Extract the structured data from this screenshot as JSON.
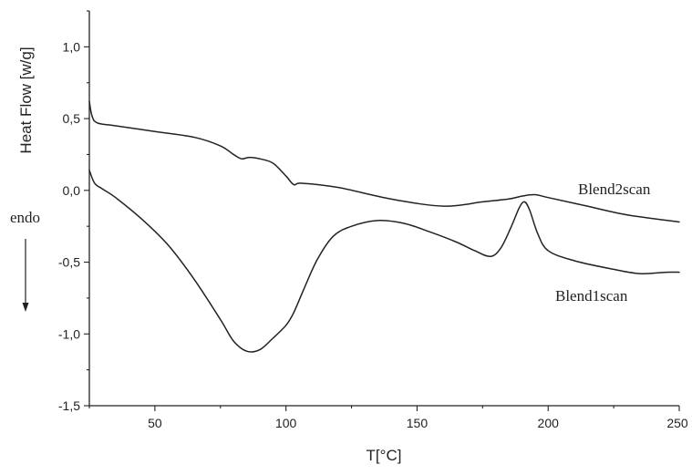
{
  "chart_data": {
    "type": "line",
    "xlabel": "T[°C]",
    "ylabel": "Heat Flow [w/g]",
    "xlim": [
      25,
      250
    ],
    "ylim": [
      -1.5,
      1.25
    ],
    "x_ticks": [
      50,
      100,
      150,
      200,
      250
    ],
    "x_tick_labels": [
      "50",
      "100",
      "150",
      "200",
      "250"
    ],
    "y_ticks": [
      -1.5,
      -1.0,
      -0.5,
      0.0,
      0.5,
      1.0
    ],
    "y_tick_labels": [
      "-1,5",
      "-1,0",
      "-0,5",
      "0,0",
      "0,5",
      "1,0"
    ],
    "grid": false,
    "annotations": {
      "endo_label": "endo"
    },
    "series": [
      {
        "name": "Blend2scan",
        "points": [
          [
            25,
            0.62
          ],
          [
            26,
            0.52
          ],
          [
            28,
            0.47
          ],
          [
            35,
            0.45
          ],
          [
            50,
            0.41
          ],
          [
            65,
            0.37
          ],
          [
            75,
            0.31
          ],
          [
            80,
            0.25
          ],
          [
            83,
            0.22
          ],
          [
            86,
            0.23
          ],
          [
            90,
            0.22
          ],
          [
            95,
            0.19
          ],
          [
            100,
            0.1
          ],
          [
            103,
            0.04
          ],
          [
            106,
            0.05
          ],
          [
            120,
            0.02
          ],
          [
            140,
            -0.06
          ],
          [
            160,
            -0.11
          ],
          [
            175,
            -0.08
          ],
          [
            185,
            -0.06
          ],
          [
            190,
            -0.04
          ],
          [
            195,
            -0.03
          ],
          [
            200,
            -0.05
          ],
          [
            215,
            -0.11
          ],
          [
            230,
            -0.17
          ],
          [
            250,
            -0.22
          ]
        ]
      },
      {
        "name": "Blend1scan",
        "points": [
          [
            25,
            0.14
          ],
          [
            27,
            0.05
          ],
          [
            30,
            0.01
          ],
          [
            35,
            -0.05
          ],
          [
            45,
            -0.2
          ],
          [
            55,
            -0.38
          ],
          [
            65,
            -0.62
          ],
          [
            75,
            -0.9
          ],
          [
            80,
            -1.05
          ],
          [
            85,
            -1.12
          ],
          [
            90,
            -1.11
          ],
          [
            95,
            -1.03
          ],
          [
            100,
            -0.94
          ],
          [
            103,
            -0.85
          ],
          [
            107,
            -0.68
          ],
          [
            112,
            -0.48
          ],
          [
            118,
            -0.32
          ],
          [
            125,
            -0.25
          ],
          [
            135,
            -0.21
          ],
          [
            145,
            -0.23
          ],
          [
            155,
            -0.29
          ],
          [
            165,
            -0.36
          ],
          [
            172,
            -0.42
          ],
          [
            178,
            -0.46
          ],
          [
            182,
            -0.4
          ],
          [
            186,
            -0.25
          ],
          [
            189,
            -0.12
          ],
          [
            191,
            -0.08
          ],
          [
            193,
            -0.14
          ],
          [
            196,
            -0.3
          ],
          [
            200,
            -0.42
          ],
          [
            210,
            -0.49
          ],
          [
            225,
            -0.55
          ],
          [
            235,
            -0.58
          ],
          [
            245,
            -0.57
          ],
          [
            250,
            -0.57
          ]
        ]
      }
    ]
  }
}
